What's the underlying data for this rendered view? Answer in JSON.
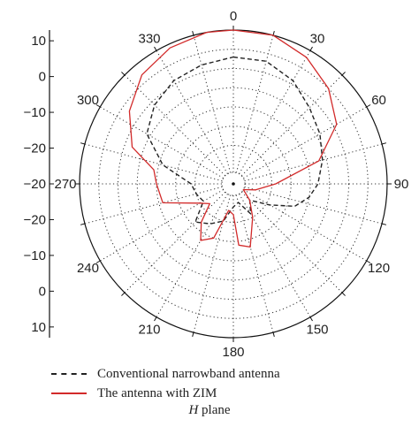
{
  "chart_data": {
    "type": "polar",
    "angle_unit": "degrees",
    "angle_ticks": [
      0,
      30,
      60,
      90,
      120,
      150,
      180,
      210,
      240,
      270,
      300,
      330
    ],
    "radial_axis": {
      "range": [
        -30,
        10
      ],
      "tick_labels_top_to_bottom": [
        "10",
        "0",
        "−10",
        "−20",
        "−20",
        "−20",
        "−10",
        "0",
        "10"
      ]
    },
    "grid": true,
    "series": [
      {
        "name": "Conventional narrowband antenna",
        "style": "dashed",
        "color": "#222222",
        "points": [
          {
            "angle": 0,
            "r": 3
          },
          {
            "angle": 15,
            "r": 3
          },
          {
            "angle": 30,
            "r": 1
          },
          {
            "angle": 45,
            "r": -2
          },
          {
            "angle": 60,
            "r": -4
          },
          {
            "angle": 75,
            "r": -6
          },
          {
            "angle": 90,
            "r": -8
          },
          {
            "angle": 100,
            "r": -10
          },
          {
            "angle": 110,
            "r": -13
          },
          {
            "angle": 120,
            "r": -19
          },
          {
            "angle": 135,
            "r": -24
          },
          {
            "angle": 150,
            "r": -21
          },
          {
            "angle": 165,
            "r": -25
          },
          {
            "angle": 180,
            "r": -24
          },
          {
            "angle": 195,
            "r": -20
          },
          {
            "angle": 210,
            "r": -18
          },
          {
            "angle": 225,
            "r": -16
          },
          {
            "angle": 240,
            "r": -21
          },
          {
            "angle": 255,
            "r": -20
          },
          {
            "angle": 270,
            "r": -19
          },
          {
            "angle": 285,
            "r": -11
          },
          {
            "angle": 300,
            "r": -4
          },
          {
            "angle": 315,
            "r": -1
          },
          {
            "angle": 330,
            "r": 1
          },
          {
            "angle": 345,
            "r": 2
          }
        ]
      },
      {
        "name": "The antenna with ZIM",
        "style": "solid",
        "color": "#d22a2a",
        "points": [
          {
            "angle": 0,
            "r": 10
          },
          {
            "angle": 15,
            "r": 10
          },
          {
            "angle": 30,
            "r": 8
          },
          {
            "angle": 45,
            "r": 5
          },
          {
            "angle": 60,
            "r": 1
          },
          {
            "angle": 75,
            "r": -7
          },
          {
            "angle": 90,
            "r": -19
          },
          {
            "angle": 105,
            "r": -24
          },
          {
            "angle": 120,
            "r": -27
          },
          {
            "angle": 135,
            "r": -24
          },
          {
            "angle": 150,
            "r": -20
          },
          {
            "angle": 165,
            "r": -13
          },
          {
            "angle": 175,
            "r": -14
          },
          {
            "angle": 180,
            "r": -22
          },
          {
            "angle": 190,
            "r": -23
          },
          {
            "angle": 200,
            "r": -15
          },
          {
            "angle": 210,
            "r": -13
          },
          {
            "angle": 220,
            "r": -17
          },
          {
            "angle": 230,
            "r": -22
          },
          {
            "angle": 240,
            "r": -20
          },
          {
            "angle": 255,
            "r": -11
          },
          {
            "angle": 270,
            "r": -10
          },
          {
            "angle": 280,
            "r": -9
          },
          {
            "angle": 290,
            "r": -2
          },
          {
            "angle": 305,
            "r": 3
          },
          {
            "angle": 320,
            "r": 7
          },
          {
            "angle": 335,
            "r": 9
          },
          {
            "angle": 350,
            "r": 10
          }
        ]
      }
    ],
    "legend_position": "bottom-left",
    "caption_italic": "H",
    "caption_rest": " plane"
  }
}
